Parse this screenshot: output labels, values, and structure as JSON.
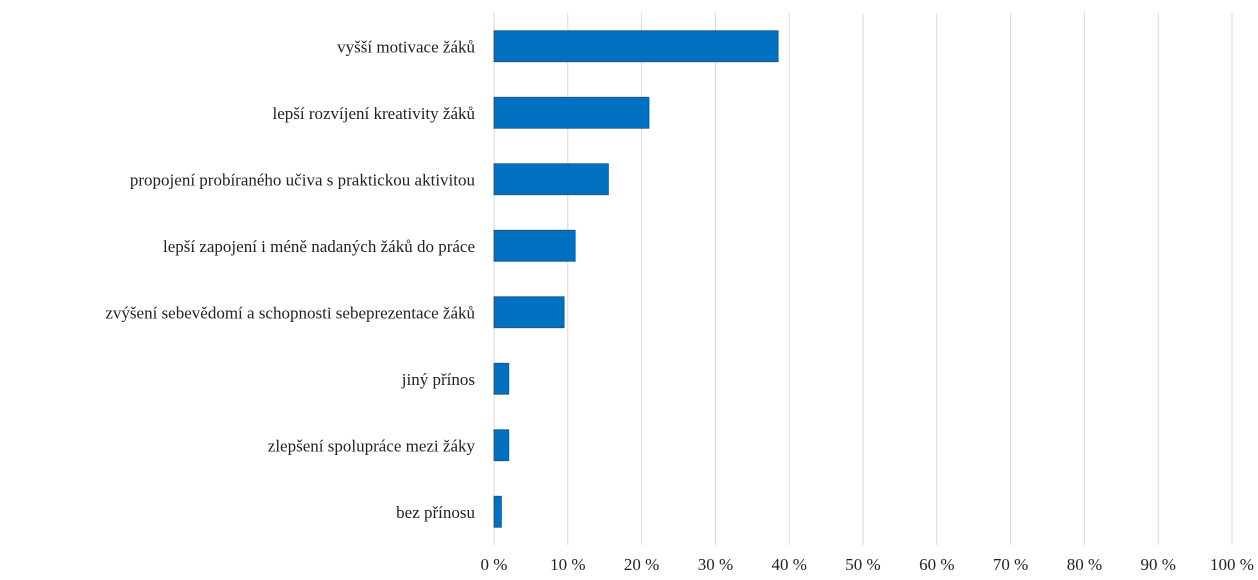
{
  "chart_data": {
    "type": "bar",
    "orientation": "horizontal",
    "categories": [
      "vyšší motivace žáků",
      "lepší rozvíjení kreativity žáků",
      "propojení probíraného učiva s praktickou aktivitou",
      "lepší zapojení i méně nadaných žáků do práce",
      "zvýšení sebevědomí a schopnosti sebeprezentace žáků",
      "jiný přínos",
      "zlepšení spolupráce mezi žáky",
      "bez přínosu"
    ],
    "values": [
      38.5,
      21,
      15.5,
      11,
      9.5,
      2,
      2,
      1
    ],
    "unit": "%",
    "xlim": [
      0,
      100
    ],
    "xticks": [
      "0 %",
      "10 %",
      "20 %",
      "30 %",
      "40 %",
      "50 %",
      "60 %",
      "70 %",
      "80 %",
      "90 %",
      "100 %"
    ],
    "title": "",
    "xlabel": "",
    "ylabel": "",
    "grid": "vertical",
    "legend": "none",
    "bar_color": "#0070C0"
  }
}
